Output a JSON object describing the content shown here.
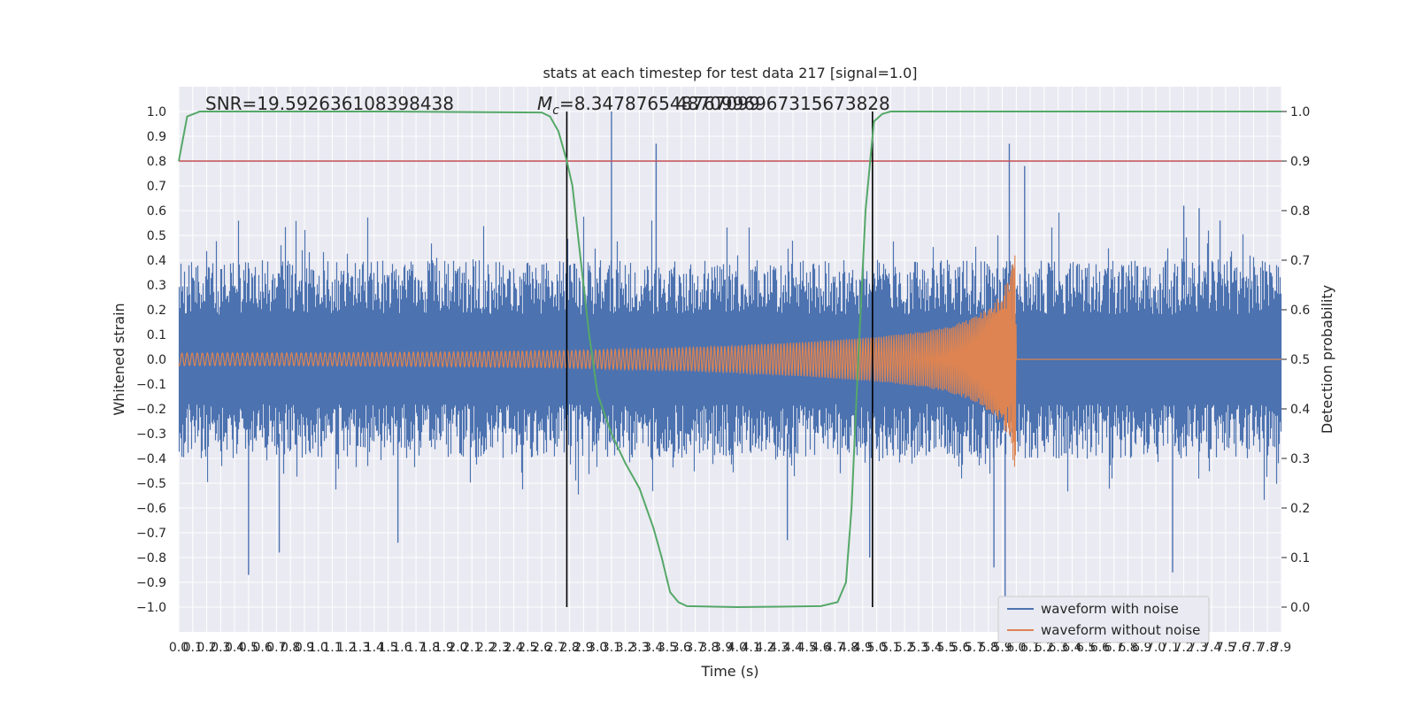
{
  "chart_data": {
    "type": "line",
    "title": "stats at each timestep for test data 217 [signal=1.0]",
    "xlabel": "Time (s)",
    "ylabel": "Whitened strain",
    "ylabel_right": "Detection probability",
    "annotations": {
      "snr": "SNR=19.59263610839843​8",
      "mc_prefix": "M",
      "mc_sub": "c",
      "mc_value": "=8.347876548767099",
      "mc_overlap": "4870996967315673828"
    },
    "xlim": [
      0,
      7.9
    ],
    "ylim": [
      -1.1,
      1.1
    ],
    "ylim_right": [
      -0.05,
      1.05
    ],
    "x_ticks": [
      0.0,
      0.1,
      0.2,
      0.3,
      0.4,
      0.5,
      0.6,
      0.7,
      0.8,
      0.9,
      1.0,
      1.1,
      1.2,
      1.3,
      1.4,
      1.5,
      1.6,
      1.7,
      1.8,
      1.9,
      2.0,
      2.1,
      2.2,
      2.3,
      2.4,
      2.5,
      2.6,
      2.7,
      2.8,
      2.9,
      3.0,
      3.1,
      3.2,
      3.3,
      3.4,
      3.5,
      3.6,
      3.7,
      3.8,
      3.9,
      4.0,
      4.1,
      4.2,
      4.3,
      4.4,
      4.5,
      4.6,
      4.7,
      4.8,
      4.9,
      5.0,
      5.1,
      5.2,
      5.3,
      5.4,
      5.5,
      5.6,
      5.7,
      5.8,
      5.9,
      6.0,
      6.1,
      6.2,
      6.3,
      6.4,
      6.5,
      6.6,
      6.7,
      6.8,
      6.9,
      7.0,
      7.1,
      7.2,
      7.3,
      7.4,
      7.5,
      7.6,
      7.7,
      7.8,
      7.9
    ],
    "y_ticks": [
      -1.0,
      -0.9,
      -0.8,
      -0.7,
      -0.6,
      -0.5,
      -0.4,
      -0.3,
      -0.2,
      -0.1,
      0.0,
      0.1,
      0.2,
      0.3,
      0.4,
      0.5,
      0.6,
      0.7,
      0.8,
      0.9,
      1.0
    ],
    "y_ticks_right": [
      0.0,
      0.1,
      0.2,
      0.3,
      0.4,
      0.5,
      0.6,
      0.7,
      0.8,
      0.9,
      1.0
    ],
    "grid": true,
    "legend_position": "lower-right",
    "series": [
      {
        "name": "waveform with noise",
        "color": "#4c72b0",
        "description_values": "whitened noisy strain, mostly within [-0.45, 0.45]",
        "peaks": [
          [
            0.5,
            -0.87
          ],
          [
            0.72,
            -0.78
          ],
          [
            1.57,
            -0.74
          ],
          [
            3.1,
            1.0
          ],
          [
            3.42,
            0.87
          ],
          [
            4.36,
            -0.73
          ],
          [
            4.95,
            -0.8
          ],
          [
            5.84,
            -0.84
          ],
          [
            5.92,
            -1.0
          ],
          [
            5.95,
            0.87
          ],
          [
            6.06,
            0.78
          ],
          [
            7.12,
            -0.86
          ],
          [
            7.2,
            0.62
          ],
          [
            7.31,
            0.61
          ],
          [
            7.46,
            0.56
          ]
        ]
      },
      {
        "name": "waveform without noise",
        "color": "#dd8452",
        "envelope": [
          [
            0.0,
            0.025
          ],
          [
            1.0,
            0.026
          ],
          [
            2.0,
            0.03
          ],
          [
            2.8,
            0.035
          ],
          [
            3.5,
            0.045
          ],
          [
            4.0,
            0.055
          ],
          [
            4.5,
            0.07
          ],
          [
            5.0,
            0.09
          ],
          [
            5.3,
            0.11
          ],
          [
            5.5,
            0.13
          ],
          [
            5.7,
            0.17
          ],
          [
            5.85,
            0.23
          ],
          [
            5.95,
            0.33
          ],
          [
            6.0,
            0.48
          ],
          [
            6.0,
            0.0
          ],
          [
            7.9,
            0.0
          ]
        ]
      },
      {
        "name": "detection probability",
        "axis": "right",
        "color": "#55a868",
        "values": [
          [
            0.0,
            0.9
          ],
          [
            0.06,
            0.99
          ],
          [
            0.15,
            1.0
          ],
          [
            1.5,
            1.0
          ],
          [
            2.6,
            0.998
          ],
          [
            2.66,
            0.99
          ],
          [
            2.72,
            0.96
          ],
          [
            2.78,
            0.9
          ],
          [
            2.82,
            0.85
          ],
          [
            2.88,
            0.7
          ],
          [
            2.94,
            0.55
          ],
          [
            3.0,
            0.43
          ],
          [
            3.1,
            0.35
          ],
          [
            3.2,
            0.29
          ],
          [
            3.3,
            0.24
          ],
          [
            3.4,
            0.16
          ],
          [
            3.46,
            0.1
          ],
          [
            3.52,
            0.03
          ],
          [
            3.58,
            0.01
          ],
          [
            3.64,
            0.002
          ],
          [
            4.0,
            0.0
          ],
          [
            4.6,
            0.002
          ],
          [
            4.72,
            0.01
          ],
          [
            4.78,
            0.05
          ],
          [
            4.82,
            0.2
          ],
          [
            4.86,
            0.45
          ],
          [
            4.92,
            0.8
          ],
          [
            4.98,
            0.98
          ],
          [
            5.04,
            0.995
          ],
          [
            5.1,
            1.0
          ],
          [
            7.9,
            1.0
          ]
        ]
      }
    ],
    "threshold": {
      "value": 0.9,
      "axis": "right",
      "color": "#c44e52"
    },
    "vlines": [
      2.78,
      4.97
    ],
    "vline_color": "#000000",
    "colors": {
      "background": "#eaeaf2",
      "grid": "#ffffff"
    }
  }
}
